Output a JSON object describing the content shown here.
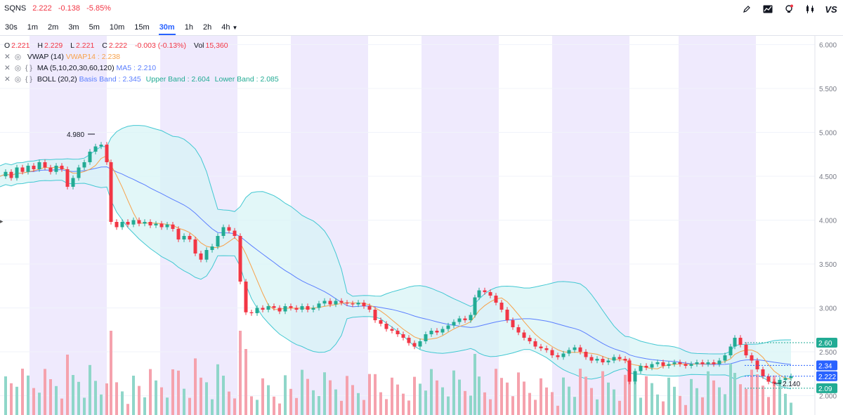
{
  "ticker": {
    "symbol": "SQNS",
    "price": "2.222",
    "change": "-0.138",
    "change_pct": "-5.85%"
  },
  "toolbar_icons": [
    "pencil-icon",
    "chart-line-icon",
    "bulb-icon",
    "candles-icon"
  ],
  "toolbar_logo": "VS",
  "intervals": [
    {
      "label": "30s"
    },
    {
      "label": "1m"
    },
    {
      "label": "2m"
    },
    {
      "label": "3m"
    },
    {
      "label": "5m"
    },
    {
      "label": "10m"
    },
    {
      "label": "15m"
    },
    {
      "label": "30m",
      "active": true
    },
    {
      "label": "1h"
    },
    {
      "label": "2h"
    },
    {
      "label": "4h"
    }
  ],
  "ohlc": {
    "o_label": "O",
    "o": "2.221",
    "h_label": "H",
    "h": "2.229",
    "l_label": "L",
    "l": "2.221",
    "c_label": "C",
    "c": "2.222",
    "chg": "-0.003 (-0.13%)",
    "vol_label": "Vol",
    "vol": "15,360"
  },
  "indicators": {
    "vwap": {
      "name": "VWAP (14)",
      "value": "VWAP14 : 2.238"
    },
    "ma": {
      "name": "MA (5,10,20,30,60,120)",
      "value": "MA5 : 2.210"
    },
    "boll": {
      "name": "BOLL (20,2)",
      "basis": "Basis Band : 2.345",
      "upper": "Upper Band : 2.604",
      "lower": "Lower Band : 2.085"
    }
  },
  "chart_data": {
    "type": "candlestick",
    "y_ticks": [
      "6.000",
      "5.500",
      "5.000",
      "4.500",
      "4.000",
      "3.500",
      "3.000",
      "2.500",
      "2.000"
    ],
    "ylim": [
      1.78,
      6.1
    ],
    "annotations": [
      {
        "text": "4.980",
        "value": 4.98
      },
      {
        "text": "2.140",
        "value": 2.14
      }
    ],
    "price_badges": [
      {
        "text": "2.60",
        "value": 2.604,
        "color": "#22ab94"
      },
      {
        "text": "2.34",
        "value": 2.345,
        "color": "#2962ff"
      },
      {
        "text": "2.222",
        "value": 2.222,
        "color": "#2962ff"
      },
      {
        "text": "2.09",
        "value": 2.085,
        "color": "#22ab94"
      }
    ],
    "colors": {
      "up": "#22ab94",
      "down": "#f23645",
      "vwap": "#f7a24b",
      "ma": "#5b7fff",
      "boll": "#43c8d2",
      "band_fill": "#d6f3f5",
      "session_shade": "#efeafd",
      "vol_up": "#8fd6c9",
      "vol_down": "#f5a2ad"
    },
    "close_path": [
      [
        0,
        4.5
      ],
      [
        8,
        4.55
      ],
      [
        16,
        4.48
      ],
      [
        24,
        4.6
      ],
      [
        32,
        4.55
      ],
      [
        40,
        4.62
      ],
      [
        48,
        4.58
      ],
      [
        56,
        4.66
      ],
      [
        64,
        4.6
      ],
      [
        72,
        4.55
      ],
      [
        80,
        4.62
      ],
      [
        88,
        4.58
      ],
      [
        96,
        4.38
      ],
      [
        104,
        4.48
      ],
      [
        112,
        4.6
      ],
      [
        120,
        4.66
      ],
      [
        128,
        4.78
      ],
      [
        136,
        4.84
      ],
      [
        144,
        4.86
      ],
      [
        152,
        4.66
      ],
      [
        158,
        3.98
      ],
      [
        166,
        3.92
      ],
      [
        174,
        3.98
      ],
      [
        182,
        3.95
      ],
      [
        190,
        4.0
      ],
      [
        198,
        3.96
      ],
      [
        206,
        3.98
      ],
      [
        214,
        3.94
      ],
      [
        222,
        3.96
      ],
      [
        230,
        3.92
      ],
      [
        238,
        3.95
      ],
      [
        246,
        3.9
      ],
      [
        254,
        3.78
      ],
      [
        262,
        3.82
      ],
      [
        270,
        3.78
      ],
      [
        278,
        3.62
      ],
      [
        286,
        3.55
      ],
      [
        294,
        3.66
      ],
      [
        302,
        3.7
      ],
      [
        310,
        3.82
      ],
      [
        318,
        3.92
      ],
      [
        326,
        3.88
      ],
      [
        334,
        3.82
      ],
      [
        342,
        3.3
      ],
      [
        350,
        2.95
      ],
      [
        358,
        2.94
      ],
      [
        366,
        3.0
      ],
      [
        374,
        2.98
      ],
      [
        382,
        3.02
      ],
      [
        390,
        3.0
      ],
      [
        398,
        2.96
      ],
      [
        406,
        3.02
      ],
      [
        414,
        3.0
      ],
      [
        422,
        2.98
      ],
      [
        430,
        3.02
      ],
      [
        438,
        2.98
      ],
      [
        446,
        3.0
      ],
      [
        454,
        3.05
      ],
      [
        462,
        3.08
      ],
      [
        470,
        3.04
      ],
      [
        478,
        3.08
      ],
      [
        486,
        3.06
      ],
      [
        494,
        3.05
      ],
      [
        502,
        3.04
      ],
      [
        510,
        3.06
      ],
      [
        518,
        3.02
      ],
      [
        526,
        2.98
      ],
      [
        534,
        2.86
      ],
      [
        542,
        2.82
      ],
      [
        550,
        2.76
      ],
      [
        558,
        2.74
      ],
      [
        566,
        2.7
      ],
      [
        574,
        2.66
      ],
      [
        582,
        2.6
      ],
      [
        590,
        2.56
      ],
      [
        598,
        2.62
      ],
      [
        606,
        2.7
      ],
      [
        614,
        2.74
      ],
      [
        622,
        2.72
      ],
      [
        630,
        2.76
      ],
      [
        638,
        2.8
      ],
      [
        646,
        2.84
      ],
      [
        654,
        2.88
      ],
      [
        662,
        2.86
      ],
      [
        670,
        2.92
      ],
      [
        676,
        3.12
      ],
      [
        682,
        3.2
      ],
      [
        690,
        3.18
      ],
      [
        698,
        3.14
      ],
      [
        706,
        3.06
      ],
      [
        714,
        2.98
      ],
      [
        722,
        2.86
      ],
      [
        730,
        2.78
      ],
      [
        738,
        2.72
      ],
      [
        746,
        2.66
      ],
      [
        754,
        2.62
      ],
      [
        762,
        2.56
      ],
      [
        770,
        2.54
      ],
      [
        778,
        2.52
      ],
      [
        786,
        2.46
      ],
      [
        794,
        2.44
      ],
      [
        802,
        2.48
      ],
      [
        810,
        2.52
      ],
      [
        818,
        2.55
      ],
      [
        826,
        2.5
      ],
      [
        834,
        2.44
      ],
      [
        842,
        2.4
      ],
      [
        850,
        2.42
      ],
      [
        858,
        2.38
      ],
      [
        866,
        2.4
      ],
      [
        874,
        2.44
      ],
      [
        882,
        2.42
      ],
      [
        890,
        2.4
      ],
      [
        896,
        2.16
      ],
      [
        904,
        2.28
      ],
      [
        912,
        2.34
      ],
      [
        920,
        2.32
      ],
      [
        928,
        2.36
      ],
      [
        936,
        2.38
      ],
      [
        944,
        2.34
      ],
      [
        952,
        2.36
      ],
      [
        960,
        2.38
      ],
      [
        968,
        2.36
      ],
      [
        976,
        2.34
      ],
      [
        984,
        2.36
      ],
      [
        992,
        2.38
      ],
      [
        1000,
        2.36
      ],
      [
        1008,
        2.38
      ],
      [
        1016,
        2.36
      ],
      [
        1024,
        2.4
      ],
      [
        1032,
        2.46
      ],
      [
        1040,
        2.56
      ],
      [
        1046,
        2.66
      ],
      [
        1054,
        2.58
      ],
      [
        1062,
        2.46
      ],
      [
        1070,
        2.4
      ],
      [
        1078,
        2.3
      ],
      [
        1086,
        2.22
      ],
      [
        1094,
        2.16
      ],
      [
        1102,
        2.14
      ],
      [
        1110,
        2.18
      ],
      [
        1118,
        2.2
      ],
      [
        1126,
        2.222
      ]
    ]
  }
}
